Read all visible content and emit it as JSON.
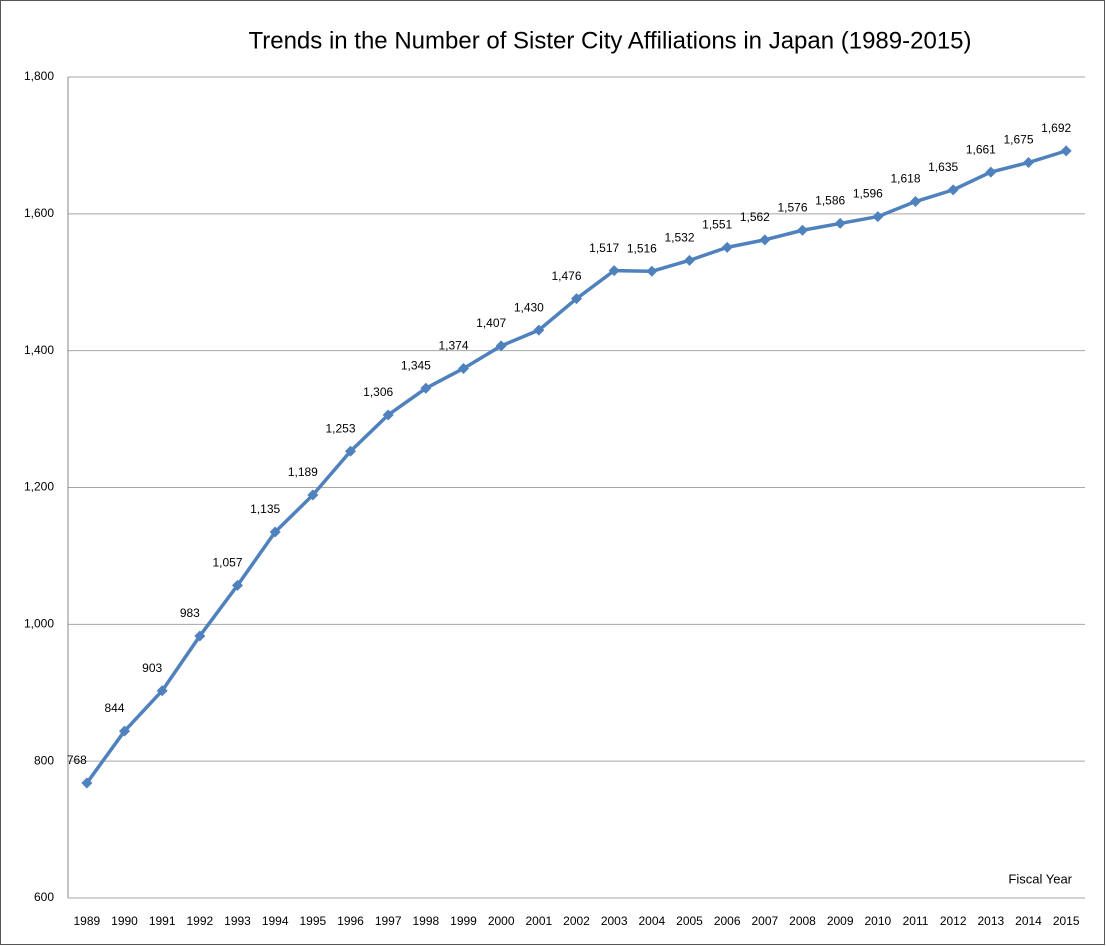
{
  "chart_data": {
    "type": "line",
    "title": "Trends in the Number of Sister City Affiliations in Japan (1989-2015)",
    "x_label": "Fiscal Year",
    "categories": [
      "1989",
      "1990",
      "1991",
      "1992",
      "1993",
      "1994",
      "1995",
      "1996",
      "1997",
      "1998",
      "1999",
      "2000",
      "2001",
      "2002",
      "2003",
      "2004",
      "2005",
      "2006",
      "2007",
      "2008",
      "2009",
      "2010",
      "2011",
      "2012",
      "2013",
      "2014",
      "2015"
    ],
    "series": [
      {
        "name": "Sister City Affiliations",
        "color": "#4f81bd",
        "values": [
          768,
          844,
          903,
          983,
          1057,
          1135,
          1189,
          1253,
          1306,
          1345,
          1374,
          1407,
          1430,
          1476,
          1517,
          1516,
          1532,
          1551,
          1562,
          1576,
          1586,
          1596,
          1618,
          1635,
          1661,
          1675,
          1692
        ],
        "value_labels": [
          "768",
          "844",
          "903",
          "983",
          "1,057",
          "1,135",
          "1,189",
          "1,253",
          "1,306",
          "1,345",
          "1,374",
          "1,407",
          "1,430",
          "1,476",
          "1,517",
          "1,516",
          "1,532",
          "1,551",
          "1,562",
          "1,576",
          "1,586",
          "1,596",
          "1,618",
          "1,635",
          "1,661",
          "1,675",
          "1,692"
        ]
      }
    ],
    "ylim": [
      600,
      1800
    ],
    "yticks": [
      600,
      800,
      {
        "value": 1000,
        "label": "1,000"
      },
      {
        "value": 1200,
        "label": "1,200"
      },
      {
        "value": 1400,
        "label": "1,400"
      },
      {
        "value": 1600,
        "label": "1,600"
      },
      {
        "value": 1800,
        "label": "1,800"
      }
    ],
    "grid": true
  }
}
